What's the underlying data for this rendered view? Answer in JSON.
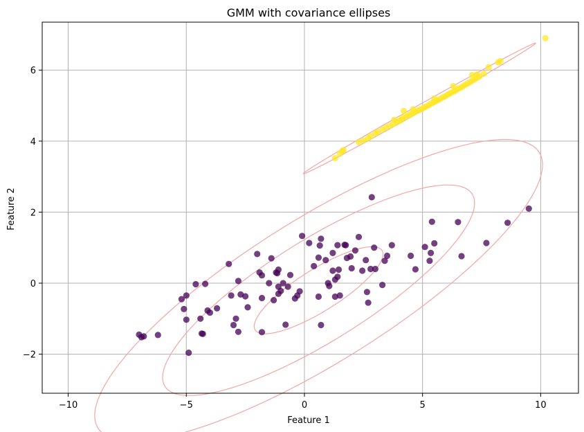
{
  "chart_data": {
    "type": "scatter",
    "title": "GMM with covariance ellipses",
    "xlabel": "Feature 1",
    "ylabel": "Feature 2",
    "xlim": [
      -11.1,
      11.6
    ],
    "ylim": [
      -3.1,
      7.35
    ],
    "x_ticks": [
      -10,
      -5,
      0,
      5,
      10
    ],
    "y_ticks": [
      -2,
      0,
      2,
      4,
      6
    ],
    "x_tick_labels": [
      "−10",
      "−5",
      "0",
      "5",
      "10"
    ],
    "y_tick_labels": [
      "−2",
      "0",
      "2",
      "4",
      "6"
    ],
    "grid": true,
    "colors": {
      "cluster_0": "#440154",
      "cluster_1": "#fde725",
      "ellipse": "#f4a6a6",
      "grid": "#b0b0b0"
    },
    "series": [
      {
        "color": "#440154",
        "points": [
          [
            -7.0,
            -1.45
          ],
          [
            -6.8,
            -1.5
          ],
          [
            -6.9,
            -1.52
          ],
          [
            -6.2,
            -1.46
          ],
          [
            -5.2,
            -0.45
          ],
          [
            -5.0,
            -0.35
          ],
          [
            -5.1,
            -0.73
          ],
          [
            -5.0,
            -1.03
          ],
          [
            -4.9,
            -1.96
          ],
          [
            -4.6,
            -0.03
          ],
          [
            -4.4,
            -1.0
          ],
          [
            -4.3,
            -1.43
          ],
          [
            -4.35,
            -1.42
          ],
          [
            -4.2,
            -0.02
          ],
          [
            -4.1,
            -0.77
          ],
          [
            -4.0,
            -0.83
          ],
          [
            -3.7,
            -0.71
          ],
          [
            -3.2,
            0.54
          ],
          [
            -3.1,
            -0.35
          ],
          [
            -3.0,
            -1.18
          ],
          [
            -2.9,
            -1.0
          ],
          [
            -2.8,
            0.06
          ],
          [
            -2.8,
            -1.37
          ],
          [
            -2.7,
            -0.32
          ],
          [
            -2.5,
            -0.37
          ],
          [
            -2.4,
            -0.68
          ],
          [
            -2.0,
            0.82
          ],
          [
            -1.9,
            0.3
          ],
          [
            -1.8,
            -0.42
          ],
          [
            -1.8,
            0.22
          ],
          [
            -1.8,
            -1.38
          ],
          [
            -1.5,
            0.0
          ],
          [
            -1.4,
            0.7
          ],
          [
            -1.3,
            -0.48
          ],
          [
            -1.2,
            0.3
          ],
          [
            -1.1,
            0.38
          ],
          [
            -1.15,
            0.28
          ],
          [
            -1.1,
            -0.1
          ],
          [
            -1.1,
            -0.3
          ],
          [
            -1.0,
            -0.22
          ],
          [
            -0.9,
            0.0
          ],
          [
            -0.8,
            -1.17
          ],
          [
            -0.7,
            -0.1
          ],
          [
            -0.6,
            0.23
          ],
          [
            -0.4,
            -0.43
          ],
          [
            -0.3,
            -0.35
          ],
          [
            -0.2,
            -0.23
          ],
          [
            -0.1,
            1.33
          ],
          [
            0.2,
            1.13
          ],
          [
            0.4,
            0.48
          ],
          [
            0.6,
            0.72
          ],
          [
            0.6,
            -0.38
          ],
          [
            0.65,
            1.06
          ],
          [
            0.7,
            1.25
          ],
          [
            0.7,
            -1.18
          ],
          [
            0.9,
            0.65
          ],
          [
            1.0,
            0.0
          ],
          [
            1.05,
            -0.08
          ],
          [
            1.2,
            0.85
          ],
          [
            1.2,
            0.35
          ],
          [
            1.3,
            0.1
          ],
          [
            1.3,
            -0.38
          ],
          [
            1.4,
            1.07
          ],
          [
            1.4,
            0.18
          ],
          [
            1.45,
            0.38
          ],
          [
            1.5,
            -0.35
          ],
          [
            1.7,
            1.08
          ],
          [
            1.75,
            1.07
          ],
          [
            1.8,
            0.71
          ],
          [
            1.95,
            0.75
          ],
          [
            2.0,
            0.42
          ],
          [
            2.15,
            0.92
          ],
          [
            2.3,
            1.3
          ],
          [
            2.45,
            0.35
          ],
          [
            2.6,
            0.65
          ],
          [
            2.65,
            -0.25
          ],
          [
            2.7,
            -0.55
          ],
          [
            2.8,
            0.4
          ],
          [
            2.85,
            2.42
          ],
          [
            2.95,
            1.0
          ],
          [
            3.0,
            0.4
          ],
          [
            3.3,
            -0.05
          ],
          [
            3.4,
            0.63
          ],
          [
            3.5,
            0.77
          ],
          [
            3.7,
            1.07
          ],
          [
            4.5,
            0.77
          ],
          [
            4.7,
            0.39
          ],
          [
            5.1,
            1.02
          ],
          [
            5.3,
            0.63
          ],
          [
            5.35,
            0.85
          ],
          [
            5.4,
            1.73
          ],
          [
            5.5,
            1.12
          ],
          [
            6.5,
            1.72
          ],
          [
            6.65,
            0.76
          ],
          [
            7.7,
            1.13
          ],
          [
            8.6,
            1.7
          ],
          [
            9.5,
            2.1
          ]
        ]
      },
      {
        "color": "#fde725",
        "points": [
          [
            1.3,
            3.52
          ],
          [
            1.5,
            3.65
          ],
          [
            1.65,
            3.75
          ],
          [
            1.6,
            3.72
          ],
          [
            2.3,
            3.97
          ],
          [
            2.5,
            4.02
          ],
          [
            2.8,
            4.14
          ],
          [
            3.0,
            4.22
          ],
          [
            3.1,
            4.26
          ],
          [
            3.3,
            4.32
          ],
          [
            3.45,
            4.38
          ],
          [
            3.6,
            4.43
          ],
          [
            3.75,
            4.48
          ],
          [
            3.9,
            4.53
          ],
          [
            4.0,
            4.57
          ],
          [
            4.1,
            4.6
          ],
          [
            4.15,
            4.66
          ],
          [
            4.2,
            4.85
          ],
          [
            4.3,
            4.68
          ],
          [
            4.4,
            4.72
          ],
          [
            4.5,
            4.76
          ],
          [
            4.6,
            4.79
          ],
          [
            4.7,
            4.82
          ],
          [
            4.8,
            4.86
          ],
          [
            4.9,
            4.89
          ],
          [
            5.0,
            4.92
          ],
          [
            5.1,
            4.96
          ],
          [
            5.2,
            4.99
          ],
          [
            5.3,
            5.03
          ],
          [
            5.4,
            5.07
          ],
          [
            5.5,
            5.1
          ],
          [
            5.6,
            5.14
          ],
          [
            5.7,
            5.17
          ],
          [
            5.8,
            5.21
          ],
          [
            5.9,
            5.25
          ],
          [
            6.0,
            5.28
          ],
          [
            6.1,
            5.32
          ],
          [
            6.2,
            5.36
          ],
          [
            6.3,
            5.39
          ],
          [
            6.4,
            5.43
          ],
          [
            6.5,
            5.47
          ],
          [
            6.6,
            5.5
          ],
          [
            6.7,
            5.54
          ],
          [
            6.8,
            5.58
          ],
          [
            6.9,
            5.62
          ],
          [
            7.0,
            5.66
          ],
          [
            7.1,
            5.7
          ],
          [
            7.2,
            5.74
          ],
          [
            7.3,
            5.78
          ],
          [
            7.4,
            5.82
          ],
          [
            7.1,
            5.86
          ],
          [
            7.3,
            5.88
          ],
          [
            7.6,
            5.9
          ],
          [
            7.8,
            6.08
          ],
          [
            8.2,
            6.22
          ],
          [
            8.3,
            6.25
          ],
          [
            6.3,
            5.55
          ],
          [
            5.5,
            5.2
          ],
          [
            4.6,
            4.9
          ],
          [
            3.8,
            4.6
          ],
          [
            2.7,
            4.08
          ],
          [
            10.2,
            6.9
          ]
        ]
      }
    ],
    "ellipses": [
      {
        "cx": 0.6,
        "cy": -0.2,
        "a": 2.92,
        "b": 0.64,
        "angle_deg": 21.5
      },
      {
        "cx": 0.6,
        "cy": -0.2,
        "a": 7.07,
        "b": 1.55,
        "angle_deg": 21.5
      },
      {
        "cx": 0.6,
        "cy": -0.2,
        "a": 10.15,
        "b": 2.2,
        "angle_deg": 21.5
      },
      {
        "cx": 4.87,
        "cy": 4.92,
        "a": 5.25,
        "b": 0.1,
        "angle_deg": 20.5
      }
    ]
  }
}
